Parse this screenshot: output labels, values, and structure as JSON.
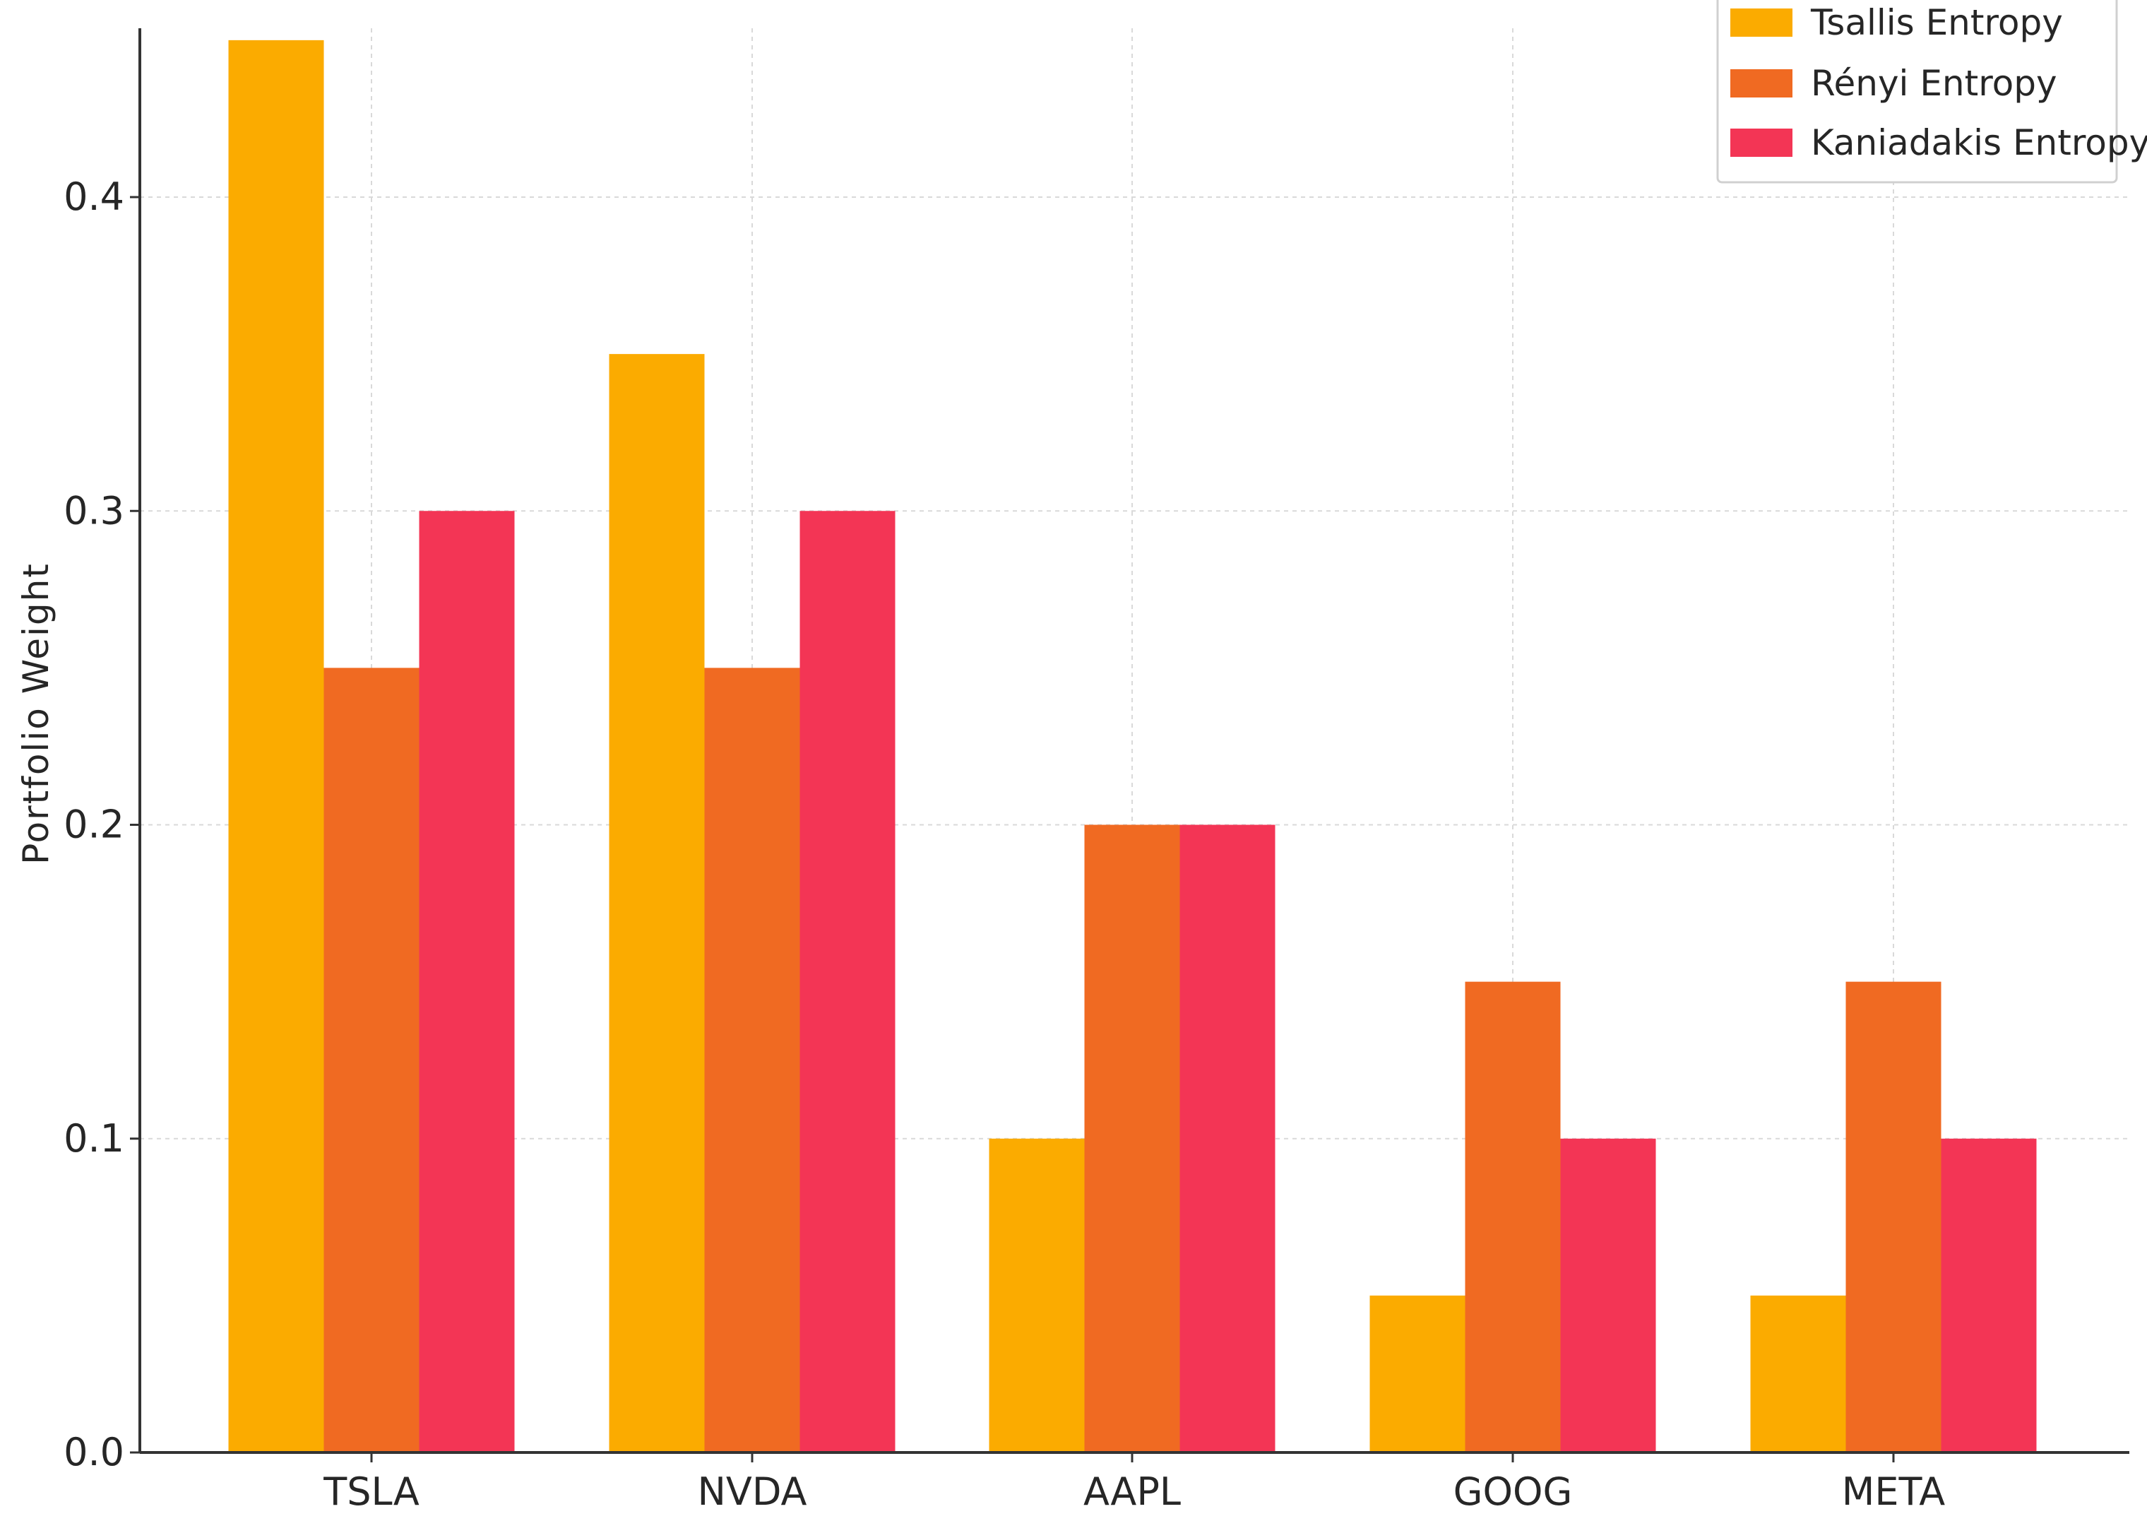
{
  "chart_data": {
    "type": "bar",
    "title": "",
    "xlabel": "",
    "ylabel": "Portfolio Weight",
    "categories": [
      "TSLA",
      "NVDA",
      "AAPL",
      "GOOG",
      "META"
    ],
    "series": [
      {
        "name": "Tsallis Entropy",
        "color": "#fbab00",
        "values": [
          0.45,
          0.35,
          0.1,
          0.05,
          0.05
        ]
      },
      {
        "name": "Rényi Entropy",
        "color": "#f06a22",
        "values": [
          0.25,
          0.25,
          0.2,
          0.15,
          0.15
        ]
      },
      {
        "name": "Kaniadakis Entropy",
        "color": "#f33555",
        "values": [
          0.3,
          0.3,
          0.2,
          0.1,
          0.1
        ]
      }
    ],
    "ylim": [
      0,
      0.45
    ],
    "yticks": [
      "0.0",
      "0.1",
      "0.2",
      "0.3",
      "0.4"
    ],
    "grid": true,
    "legend_position": "top-right"
  }
}
